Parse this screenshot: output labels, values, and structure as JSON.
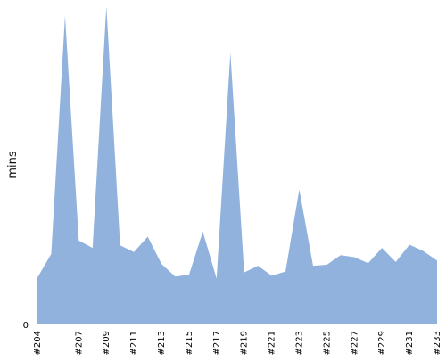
{
  "colors": {
    "area_fill": "#91b2dc",
    "axis": "#cccccc",
    "text": "#000000"
  },
  "chart_data": {
    "type": "area",
    "title": "",
    "xlabel": "",
    "ylabel": "mins",
    "categories": [
      "#204",
      "#205",
      "#206",
      "#207",
      "#208",
      "#209",
      "#210",
      "#211",
      "#212",
      "#213",
      "#214",
      "#215",
      "#216",
      "#217",
      "#218",
      "#219",
      "#220",
      "#221",
      "#222",
      "#223",
      "#224",
      "#225",
      "#226",
      "#227",
      "#228",
      "#229",
      "#230",
      "#231",
      "#232",
      "#233"
    ],
    "tick_labels": [
      "#204",
      "#207",
      "#209",
      "#211",
      "#213",
      "#215",
      "#217",
      "#219",
      "#221",
      "#223",
      "#225",
      "#227",
      "#229",
      "#231",
      "#233"
    ],
    "y_tick_labels": [
      "0"
    ],
    "values": [
      14.7,
      22.1,
      96.7,
      26.3,
      24.0,
      99.7,
      24.8,
      22.7,
      27.5,
      19.0,
      15.0,
      15.6,
      29.1,
      14.4,
      85.1,
      16.3,
      18.4,
      15.3,
      16.6,
      42.3,
      18.4,
      18.7,
      21.7,
      21.1,
      19.2,
      24.0,
      19.6,
      25.0,
      23.0,
      20.0
    ],
    "ylim": [
      0,
      100
    ],
    "grid": false,
    "legend": "none"
  }
}
